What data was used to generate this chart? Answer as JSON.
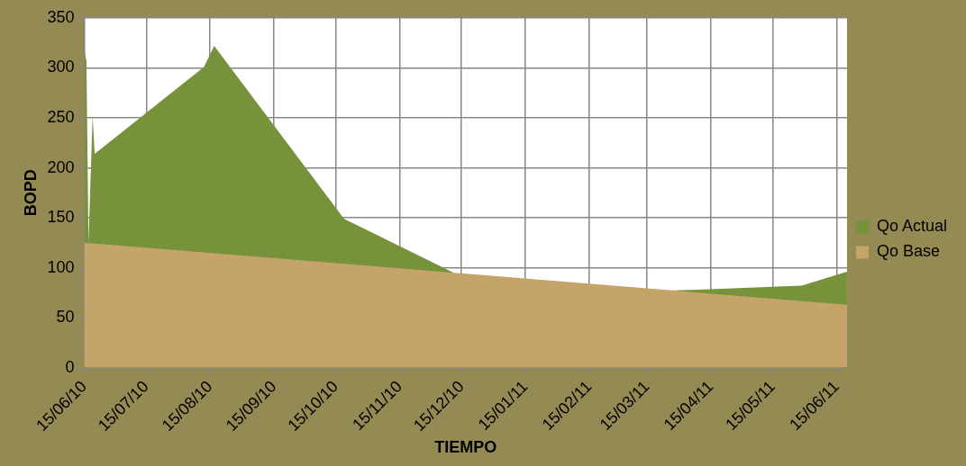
{
  "chart_data": {
    "type": "area",
    "xlabel": "TIEMPO",
    "ylabel": "BOPD",
    "xlim": [
      "2010-06-15",
      "2011-06-20"
    ],
    "xticks": [
      {
        "value": "2010-06-15",
        "label": "15/06/10"
      },
      {
        "value": "2010-07-15",
        "label": "15/07/10"
      },
      {
        "value": "2010-08-15",
        "label": "15/08/10"
      },
      {
        "value": "2010-09-15",
        "label": "15/09/10"
      },
      {
        "value": "2010-10-15",
        "label": "15/10/10"
      },
      {
        "value": "2010-11-15",
        "label": "15/11/10"
      },
      {
        "value": "2010-12-15",
        "label": "15/12/10"
      },
      {
        "value": "2011-01-15",
        "label": "15/01/11"
      },
      {
        "value": "2011-02-15",
        "label": "15/02/11"
      },
      {
        "value": "2011-03-15",
        "label": "15/03/11"
      },
      {
        "value": "2011-04-15",
        "label": "15/04/11"
      },
      {
        "value": "2011-05-15",
        "label": "15/05/11"
      },
      {
        "value": "2011-06-15",
        "label": "15/06/11"
      }
    ],
    "ylim": [
      0,
      350
    ],
    "yticks": [
      0,
      50,
      100,
      150,
      200,
      250,
      300,
      350
    ],
    "grid": true,
    "legend": "right",
    "series": [
      {
        "name": "Qo Actual",
        "color": "#76933c",
        "x": [
          "2010-06-15",
          "2010-06-16",
          "2010-06-17",
          "2010-06-19",
          "2010-06-20",
          "2010-08-12",
          "2010-08-17",
          "2010-10-19",
          "2010-12-11",
          "2011-01-15",
          "2011-03-26",
          "2011-05-29",
          "2011-06-20"
        ],
        "values": [
          318,
          307,
          125,
          252,
          214,
          301,
          322,
          149,
          95,
          null,
          77,
          82,
          96
        ]
      },
      {
        "name": "Qo Base",
        "color": "#c4a468",
        "x": [
          "2010-06-15",
          "2011-06-20"
        ],
        "values": [
          125,
          63
        ]
      }
    ]
  }
}
